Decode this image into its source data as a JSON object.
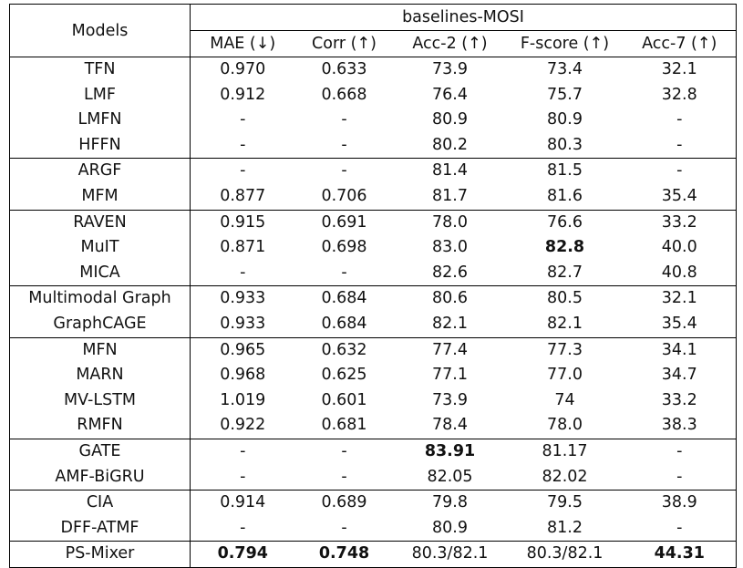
{
  "header": {
    "models_label": "Models",
    "group_label": "baselines-MOSI",
    "columns": [
      "MAE (↓)",
      "Corr (↑)",
      "Acc-2 (↑)",
      "F-score (↑)",
      "Acc-7 (↑)"
    ]
  },
  "groups": [
    {
      "rows": [
        {
          "model": "TFN",
          "mae": "0.970",
          "corr": "0.633",
          "acc2": "73.9",
          "fscore": "73.4",
          "acc7": "32.1"
        },
        {
          "model": "LMF",
          "mae": "0.912",
          "corr": "0.668",
          "acc2": "76.4",
          "fscore": "75.7",
          "acc7": "32.8"
        },
        {
          "model": "LMFN",
          "mae": "-",
          "corr": "-",
          "acc2": "80.9",
          "fscore": "80.9",
          "acc7": "-"
        },
        {
          "model": "HFFN",
          "mae": "-",
          "corr": "-",
          "acc2": "80.2",
          "fscore": "80.3",
          "acc7": "-"
        }
      ]
    },
    {
      "rows": [
        {
          "model": "ARGF",
          "mae": "-",
          "corr": "-",
          "acc2": "81.4",
          "fscore": "81.5",
          "acc7": "-"
        },
        {
          "model": "MFM",
          "mae": "0.877",
          "corr": "0.706",
          "acc2": "81.7",
          "fscore": "81.6",
          "acc7": "35.4"
        }
      ]
    },
    {
      "rows": [
        {
          "model": "RAVEN",
          "mae": "0.915",
          "corr": "0.691",
          "acc2": "78.0",
          "fscore": "76.6",
          "acc7": "33.2"
        },
        {
          "model": "MuIT",
          "mae": "0.871",
          "corr": "0.698",
          "acc2": "83.0",
          "fscore": "82.8",
          "acc7": "40.0"
        },
        {
          "model": "MICA",
          "mae": "-",
          "corr": "-",
          "acc2": "82.6",
          "fscore": "82.7",
          "acc7": "40.8"
        }
      ]
    },
    {
      "rows": [
        {
          "model": "Multimodal Graph",
          "mae": "0.933",
          "corr": "0.684",
          "acc2": "80.6",
          "fscore": "80.5",
          "acc7": "32.1"
        },
        {
          "model": "GraphCAGE",
          "mae": "0.933",
          "corr": "0.684",
          "acc2": "82.1",
          "fscore": "82.1",
          "acc7": "35.4"
        }
      ]
    },
    {
      "rows": [
        {
          "model": "MFN",
          "mae": "0.965",
          "corr": "0.632",
          "acc2": "77.4",
          "fscore": "77.3",
          "acc7": "34.1"
        },
        {
          "model": "MARN",
          "mae": "0.968",
          "corr": "0.625",
          "acc2": "77.1",
          "fscore": "77.0",
          "acc7": "34.7"
        },
        {
          "model": "MV-LSTM",
          "mae": "1.019",
          "corr": "0.601",
          "acc2": "73.9",
          "fscore": "74",
          "acc7": "33.2"
        },
        {
          "model": "RMFN",
          "mae": "0.922",
          "corr": "0.681",
          "acc2": "78.4",
          "fscore": "78.0",
          "acc7": "38.3"
        }
      ]
    },
    {
      "rows": [
        {
          "model": "GATE",
          "mae": "-",
          "corr": "-",
          "acc2": "83.91",
          "fscore": "81.17",
          "acc7": "-"
        },
        {
          "model": "AMF-BiGRU",
          "mae": "-",
          "corr": "-",
          "acc2": "82.05",
          "fscore": "82.02",
          "acc7": "-"
        }
      ]
    },
    {
      "rows": [
        {
          "model": "CIA",
          "mae": "0.914",
          "corr": "0.689",
          "acc2": "79.8",
          "fscore": "79.5",
          "acc7": "38.9"
        },
        {
          "model": "DFF-ATMF",
          "mae": "-",
          "corr": "-",
          "acc2": "80.9",
          "fscore": "81.2",
          "acc7": "-"
        }
      ]
    },
    {
      "rows": [
        {
          "model": "PS-Mixer",
          "mae": "0.794",
          "corr": "0.748",
          "acc2": "80.3/82.1",
          "fscore": "80.3/82.1",
          "acc7": "44.31"
        }
      ]
    }
  ],
  "bold_cells": [
    {
      "model": "MuIT",
      "field": "fscore"
    },
    {
      "model": "GATE",
      "field": "acc2"
    },
    {
      "model": "PS-Mixer",
      "field": "mae"
    },
    {
      "model": "PS-Mixer",
      "field": "corr"
    },
    {
      "model": "PS-Mixer",
      "field": "acc7"
    }
  ]
}
